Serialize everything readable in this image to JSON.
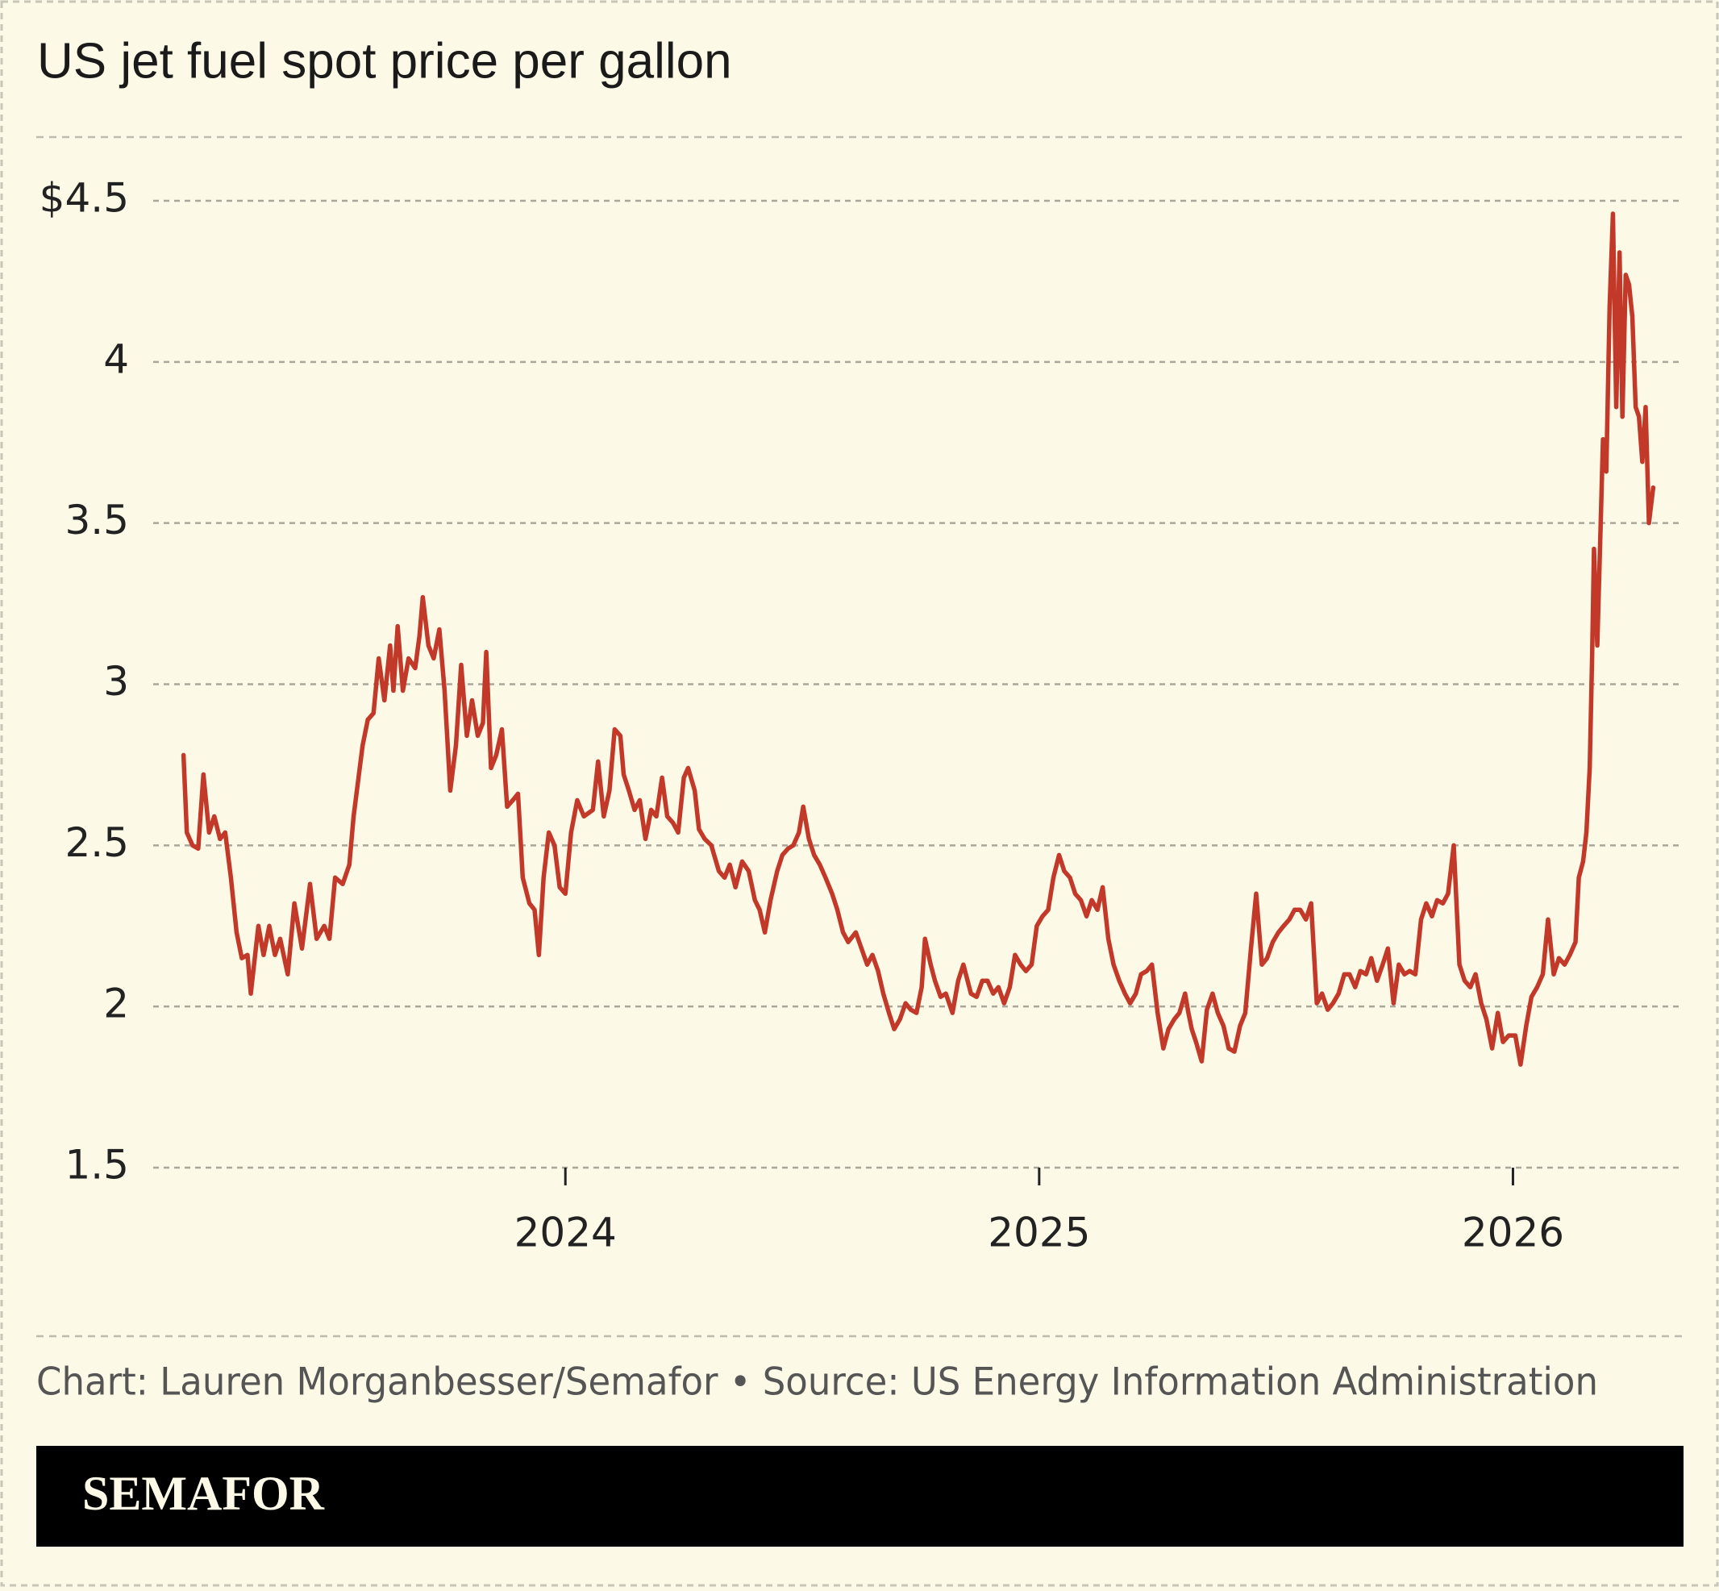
{
  "chart_data": {
    "type": "line",
    "title": "US jet fuel spot price per gallon",
    "source": "Chart: Lauren Morganbesser/Semafor • Source: US Energy Information Administration",
    "color": "#c2392a",
    "grid": true,
    "xlim": [
      2023.13,
      2026.36
    ],
    "xticks": [
      2024,
      2025,
      2026
    ],
    "ylim": [
      1.5,
      4.5
    ],
    "yticks": [
      1.5,
      2,
      2.5,
      3,
      3.5,
      4,
      {
        "value": 4.5,
        "label": "$4.5"
      }
    ],
    "x": [
      2023.194,
      2023.201,
      2023.213,
      2023.225,
      2023.236,
      2023.248,
      2023.259,
      2023.271,
      2023.282,
      2023.294,
      2023.306,
      2023.317,
      2023.329,
      2023.336,
      2023.352,
      2023.363,
      2023.375,
      2023.387,
      2023.398,
      2023.414,
      2023.428,
      2023.444,
      2023.461,
      2023.475,
      2023.491,
      2023.502,
      2023.514,
      2023.53,
      2023.544,
      2023.553,
      2023.572,
      2023.583,
      2023.595,
      2023.606,
      2023.618,
      2023.63,
      2023.637,
      2023.646,
      2023.657,
      2023.669,
      2023.683,
      2023.692,
      2023.699,
      2023.711,
      2023.722,
      2023.734,
      2023.745,
      2023.757,
      2023.769,
      2023.78,
      2023.792,
      2023.803,
      2023.815,
      2023.826,
      2023.833,
      2023.843,
      2023.854,
      2023.866,
      2023.877,
      2023.889,
      2023.9,
      2023.91,
      2023.924,
      2023.935,
      2023.944,
      2023.954,
      2023.965,
      2023.977,
      2023.988,
      2024.0,
      2024.012,
      2024.025,
      2024.039,
      2024.058,
      2024.069,
      2024.081,
      2024.093,
      2024.104,
      2024.116,
      2024.123,
      2024.134,
      2024.146,
      2024.157,
      2024.169,
      2024.181,
      2024.192,
      2024.204,
      2024.215,
      2024.227,
      2024.238,
      2024.25,
      2024.259,
      2024.273,
      2024.282,
      2024.294,
      2024.308,
      2024.324,
      2024.336,
      2024.347,
      2024.359,
      2024.373,
      2024.387,
      2024.4,
      2024.41,
      2024.421,
      2024.433,
      2024.447,
      2024.458,
      2024.47,
      2024.481,
      2024.493,
      2024.502,
      2024.514,
      2024.525,
      2024.537,
      2024.549,
      2024.563,
      2024.574,
      2024.586,
      2024.597,
      2024.613,
      2024.625,
      2024.637,
      2024.648,
      2024.66,
      2024.671,
      2024.683,
      2024.694,
      2024.706,
      2024.718,
      2024.729,
      2024.741,
      2024.752,
      2024.759,
      2024.771,
      2024.78,
      2024.792,
      2024.803,
      2024.817,
      2024.829,
      2024.84,
      2024.856,
      2024.868,
      2024.88,
      2024.891,
      2024.903,
      2024.914,
      2024.926,
      2024.938,
      2024.949,
      2024.961,
      2024.972,
      2024.984,
      2024.995,
      2025.007,
      2025.019,
      2025.03,
      2025.042,
      2025.053,
      2025.065,
      2025.076,
      2025.088,
      2025.1,
      2025.111,
      2025.123,
      2025.134,
      2025.146,
      2025.157,
      2025.169,
      2025.181,
      2025.192,
      2025.204,
      2025.215,
      2025.227,
      2025.238,
      2025.25,
      2025.262,
      2025.273,
      2025.285,
      2025.296,
      2025.308,
      2025.315,
      2025.322,
      2025.331,
      2025.343,
      2025.354,
      2025.366,
      2025.377,
      2025.389,
      2025.4,
      2025.412,
      2025.424,
      2025.435,
      2025.447,
      2025.458,
      2025.47,
      2025.481,
      2025.493,
      2025.505,
      2025.516,
      2025.528,
      2025.539,
      2025.551,
      2025.563,
      2025.574,
      2025.586,
      2025.597,
      2025.609,
      2025.62,
      2025.632,
      2025.644,
      2025.655,
      2025.667,
      2025.678,
      2025.69,
      2025.701,
      2025.713,
      2025.725,
      2025.736,
      2025.748,
      2025.759,
      2025.771,
      2025.782,
      2025.794,
      2025.806,
      2025.817,
      2025.829,
      2025.84,
      2025.852,
      2025.863,
      2025.875,
      2025.887,
      2025.898,
      2025.91,
      2025.921,
      2025.933,
      2025.944,
      2025.956,
      2025.968,
      2025.979,
      2025.991,
      2026.005,
      2026.016,
      2026.028,
      2026.039,
      2026.051,
      2026.063,
      2026.074,
      2026.086,
      2026.097,
      2026.109,
      2026.12,
      2026.132,
      2026.139,
      2026.148,
      2026.155,
      2026.162,
      2026.167,
      2026.171,
      2026.178,
      2026.185,
      2026.19,
      2026.197,
      2026.204,
      2026.211,
      2026.218,
      2026.225,
      2026.231,
      2026.238,
      2026.245,
      2026.252,
      2026.259,
      2026.266,
      2026.273,
      2026.28,
      2026.287,
      2026.296
    ],
    "values": [
      2.78,
      2.54,
      2.5,
      2.49,
      2.72,
      2.54,
      2.59,
      2.52,
      2.54,
      2.4,
      2.23,
      2.15,
      2.16,
      2.04,
      2.25,
      2.16,
      2.25,
      2.16,
      2.21,
      2.1,
      2.32,
      2.18,
      2.38,
      2.21,
      2.25,
      2.21,
      2.4,
      2.38,
      2.44,
      2.59,
      2.81,
      2.89,
      2.91,
      3.08,
      2.95,
      3.12,
      2.98,
      3.18,
      2.98,
      3.08,
      3.05,
      3.15,
      3.27,
      3.12,
      3.08,
      3.17,
      2.98,
      2.67,
      2.81,
      3.06,
      2.84,
      2.95,
      2.84,
      2.88,
      3.1,
      2.74,
      2.78,
      2.86,
      2.62,
      2.64,
      2.66,
      2.4,
      2.32,
      2.3,
      2.16,
      2.4,
      2.54,
      2.5,
      2.37,
      2.35,
      2.54,
      2.64,
      2.59,
      2.61,
      2.76,
      2.59,
      2.67,
      2.86,
      2.84,
      2.72,
      2.67,
      2.61,
      2.64,
      2.52,
      2.61,
      2.59,
      2.71,
      2.59,
      2.57,
      2.54,
      2.71,
      2.74,
      2.67,
      2.55,
      2.52,
      2.5,
      2.42,
      2.4,
      2.44,
      2.37,
      2.45,
      2.42,
      2.33,
      2.3,
      2.23,
      2.33,
      2.42,
      2.47,
      2.49,
      2.5,
      2.54,
      2.62,
      2.52,
      2.47,
      2.44,
      2.4,
      2.35,
      2.3,
      2.23,
      2.2,
      2.23,
      2.18,
      2.13,
      2.16,
      2.11,
      2.04,
      1.98,
      1.93,
      1.96,
      2.01,
      1.99,
      1.98,
      2.06,
      2.21,
      2.13,
      2.08,
      2.03,
      2.04,
      1.98,
      2.08,
      2.13,
      2.04,
      2.03,
      2.08,
      2.08,
      2.04,
      2.06,
      2.01,
      2.06,
      2.16,
      2.13,
      2.11,
      2.13,
      2.25,
      2.28,
      2.3,
      2.4,
      2.47,
      2.42,
      2.4,
      2.35,
      2.33,
      2.28,
      2.33,
      2.3,
      2.37,
      2.21,
      2.13,
      2.08,
      2.04,
      2.01,
      2.04,
      2.1,
      2.11,
      2.13,
      1.98,
      1.87,
      1.93,
      1.96,
      1.98,
      2.04,
      1.98,
      1.93,
      1.89,
      1.83,
      1.99,
      2.04,
      1.98,
      1.94,
      1.87,
      1.86,
      1.94,
      1.98,
      2.18,
      2.35,
      2.13,
      2.15,
      2.2,
      2.23,
      2.25,
      2.27,
      2.3,
      2.3,
      2.27,
      2.32,
      2.01,
      2.04,
      1.99,
      2.01,
      2.04,
      2.1,
      2.1,
      2.06,
      2.11,
      2.1,
      2.15,
      2.08,
      2.13,
      2.18,
      2.01,
      2.13,
      2.1,
      2.11,
      2.1,
      2.27,
      2.32,
      2.28,
      2.33,
      2.32,
      2.35,
      2.5,
      2.13,
      2.08,
      2.06,
      2.1,
      2.01,
      1.96,
      1.87,
      1.98,
      1.89,
      1.91,
      1.91,
      1.82,
      1.94,
      2.03,
      2.06,
      2.1,
      2.27,
      2.1,
      2.15,
      2.13,
      2.16,
      2.2,
      2.4,
      2.45,
      2.54,
      2.74,
      3.08,
      3.42,
      3.12,
      3.49,
      3.76,
      3.66,
      4.17,
      4.46,
      3.86,
      4.34,
      3.83,
      4.27,
      4.24,
      4.14,
      3.86,
      3.83,
      3.69,
      3.86,
      3.5,
      3.61
    ]
  },
  "footer": {
    "brand": "SEMAFOR"
  }
}
